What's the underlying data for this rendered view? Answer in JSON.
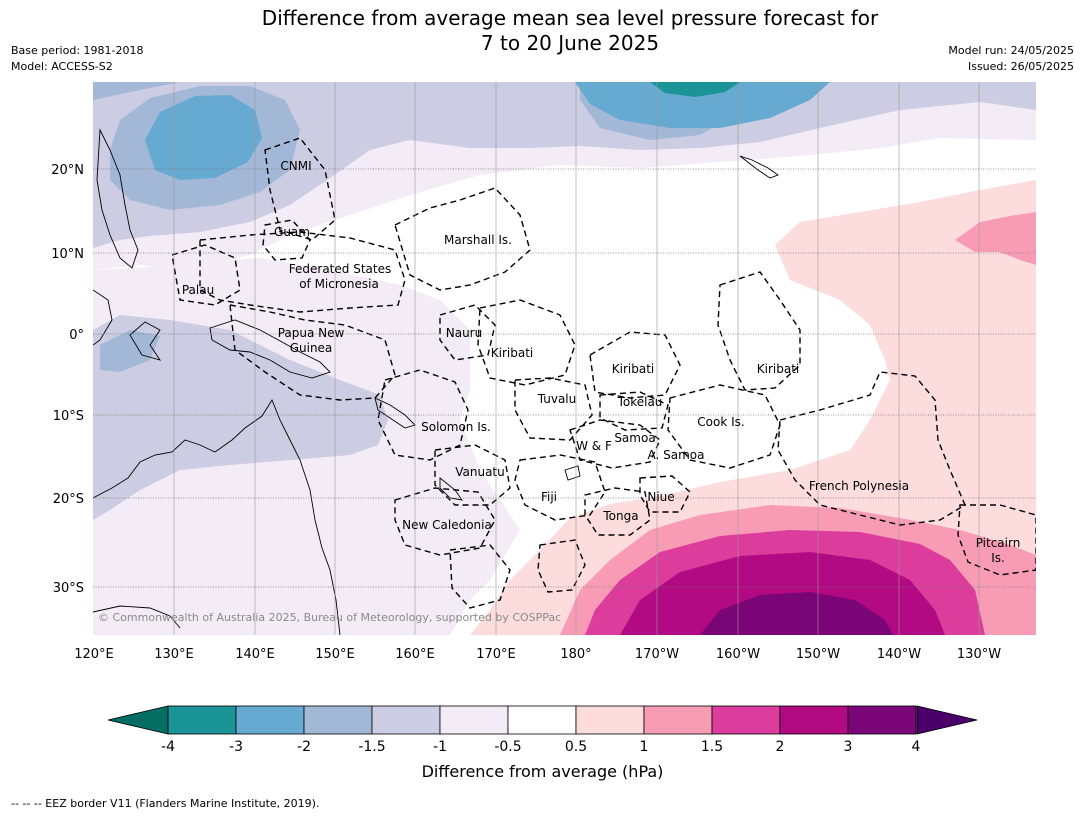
{
  "header": {
    "title_line1": "Difference from average mean sea level pressure forecast for",
    "title_line2": "7 to 20 June 2025",
    "base_period": "Base period: 1981-2018",
    "model": "Model: ACCESS-S2",
    "model_run": "Model run: 24/05/2025",
    "issued": "Issued: 26/05/2025"
  },
  "map": {
    "lon_ticks": [
      "120°E",
      "130°E",
      "140°E",
      "150°E",
      "160°E",
      "170°E",
      "180°",
      "170°W",
      "160°W",
      "150°W",
      "140°W",
      "130°W"
    ],
    "lat_ticks": [
      "20°N",
      "10°N",
      "0°",
      "10°S",
      "20°S",
      "30°S"
    ],
    "regions": {
      "cnmi": "CNMI",
      "guam": "Guam",
      "marshall": "Marshall Is.",
      "fsm1": "Federated States",
      "fsm2": "of Micronesia",
      "palau": "Palau",
      "png1": "Papua New",
      "png2": "Guinea",
      "nauru": "Nauru",
      "kiribati_w": "Kiribati",
      "kiribati_c": "Kiribati",
      "kiribati_e": "Kiribati",
      "tuvalu": "Tuvalu",
      "tokelau": "Tokelau",
      "solomon": "Solomon Is.",
      "wf": "W & F",
      "samoa": "Samoa",
      "asamoa": "A. Samoa",
      "cook": "Cook Is.",
      "vanuatu": "Vanuatu",
      "fiji": "Fiji",
      "niue": "Niue",
      "tonga": "Tonga",
      "newcal": "New Caledonia",
      "frpoly": "French Polynesia",
      "pitcairn1": "Pitcairn",
      "pitcairn2": "Is."
    },
    "copyright": "© Commonwealth of Australia 2025, Bureau of Meteorology, supported by COSPPac"
  },
  "colorbar": {
    "labels": [
      "-4",
      "-3",
      "-2",
      "-1.5",
      "-1",
      "-0.5",
      "0.5",
      "1",
      "1.5",
      "2",
      "3",
      "4"
    ],
    "colors": [
      "#1a9494",
      "#66aad2",
      "#a3b8d6",
      "#cccce3",
      "#f3ebf5",
      "#ffffff",
      "#fcdcdc",
      "#f89cb6",
      "#dc3c9b",
      "#b20a82",
      "#7a0577"
    ],
    "low_extend_color": "#056e64",
    "high_extend_color": "#4b006b",
    "title": "Difference from average (hPa)"
  },
  "footnote": "--  --  -- EEZ border V11 (Flanders Marine Institute, 2019)."
}
